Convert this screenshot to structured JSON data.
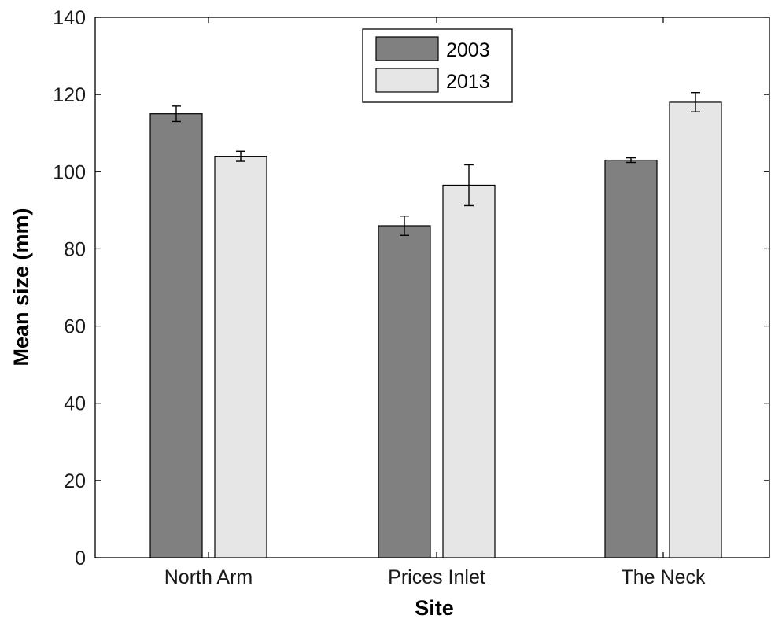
{
  "chart_data": {
    "type": "bar",
    "title": "",
    "xlabel": "Site",
    "ylabel": "Mean size (mm)",
    "categories": [
      "North Arm",
      "Prices Inlet",
      "The Neck"
    ],
    "series": [
      {
        "name": "2003",
        "values": [
          115,
          86,
          103
        ],
        "errors": [
          2,
          2.5,
          0.6
        ],
        "color": "#808080"
      },
      {
        "name": "2013",
        "values": [
          104,
          96.5,
          118
        ],
        "errors": [
          1.3,
          5.3,
          2.5
        ],
        "color": "#e6e6e6"
      }
    ],
    "ylim": [
      0,
      140
    ],
    "yticks": [
      0,
      20,
      40,
      60,
      80,
      100,
      120,
      140
    ],
    "grid": false,
    "legend_position": "top-center"
  }
}
